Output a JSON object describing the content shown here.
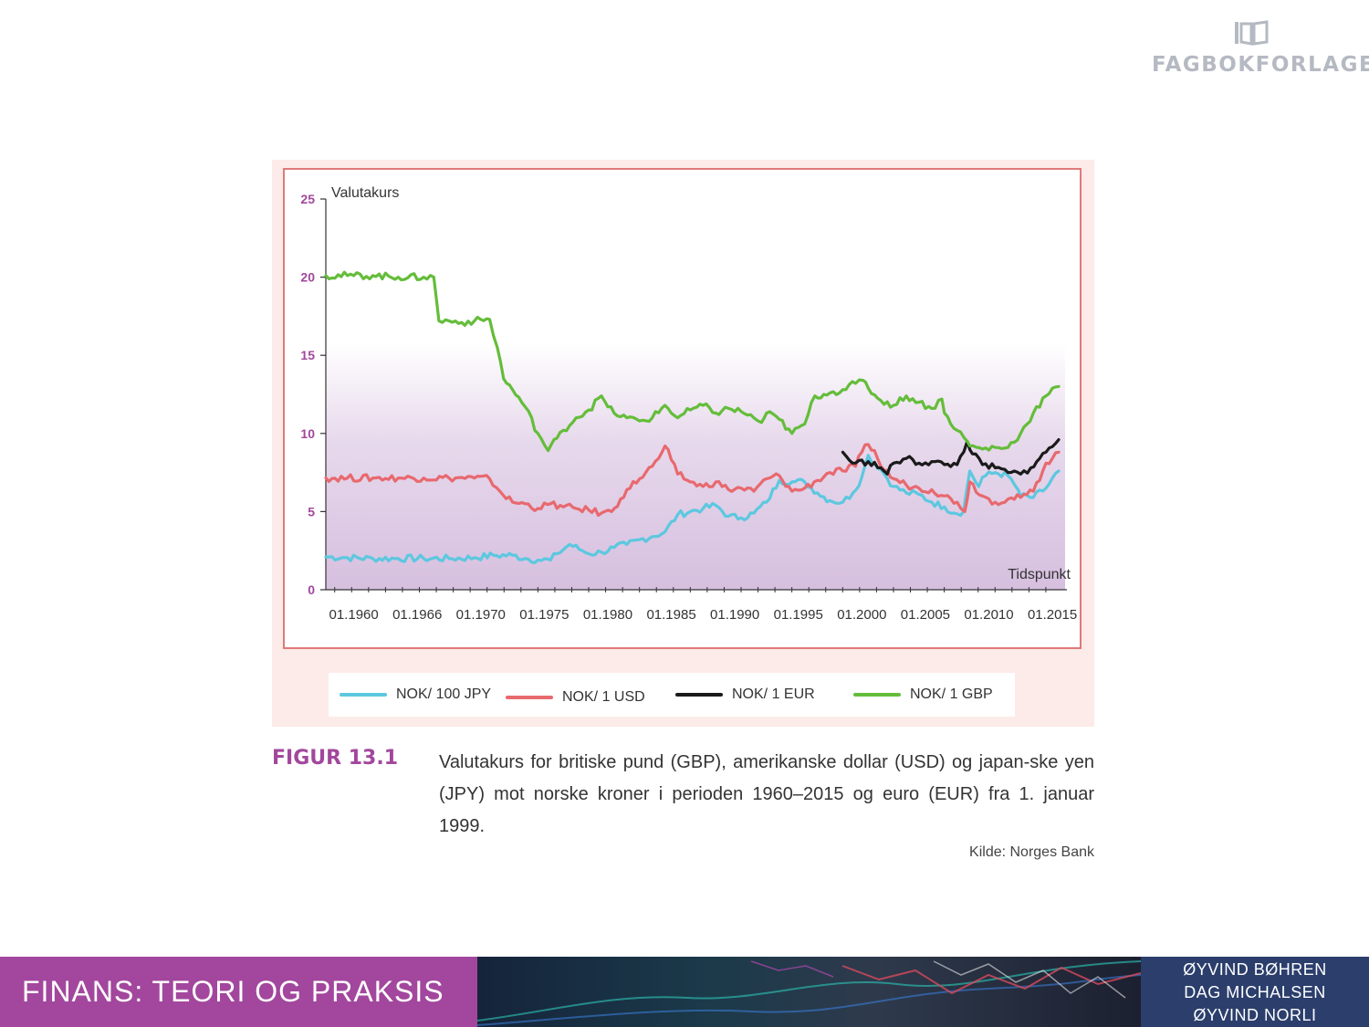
{
  "publisher": {
    "name": "FAGBOKFORLAGET",
    "icon": "open-book-logo-icon"
  },
  "chart_data": {
    "type": "line",
    "ylabel": "Valutakurs",
    "xlabel": "Tidspunkt",
    "ylim": [
      0,
      25
    ],
    "xlim": [
      1958.3,
      2016.5
    ],
    "yticks": [
      0,
      5,
      10,
      15,
      20,
      25
    ],
    "xtick_labels": [
      "01.1960",
      "01.1966",
      "01.1970",
      "01.1975",
      "01.1980",
      "01.1985",
      "01.1990",
      "01.1995",
      "01.2000",
      "01.2005",
      "01.2010",
      "01.2015"
    ],
    "xtick_positions": [
      1960.5,
      1965.5,
      1970.5,
      1975.5,
      1980.5,
      1985.5,
      1990.5,
      1995.5,
      2000.5,
      2005.5,
      2010.5,
      2015.5
    ],
    "grid": false,
    "legend_position": "bottom",
    "series": [
      {
        "name": "NOK/ 100 JPY",
        "color": "#5cc8df",
        "x": [
          1958.3,
          1960,
          1962,
          1964,
          1966,
          1968,
          1970,
          1971.5,
          1973,
          1974,
          1975,
          1976,
          1976.5,
          1977.5,
          1978.5,
          1979,
          1980,
          1981,
          1982,
          1983,
          1984,
          1985,
          1986,
          1987,
          1988,
          1989,
          1990,
          1991,
          1992,
          1993,
          1994,
          1995,
          1996,
          1997,
          1998,
          1999,
          1999.8,
          2000.5,
          2001,
          2002,
          2003,
          2004,
          2005,
          2006,
          2007,
          2007.8,
          2008.5,
          2009,
          2009.7,
          2010,
          2011,
          2012,
          2012.8,
          2013,
          2014,
          2015,
          2016
        ],
        "y": [
          2.1,
          2.05,
          2.0,
          2.0,
          2.0,
          2.0,
          2.05,
          2.2,
          2.2,
          2.0,
          1.9,
          1.9,
          2.3,
          2.9,
          2.5,
          2.3,
          2.4,
          2.7,
          2.9,
          3.2,
          3.4,
          3.7,
          4.8,
          5.0,
          5.2,
          5.4,
          4.7,
          4.6,
          4.9,
          5.6,
          7.0,
          6.9,
          6.9,
          6.2,
          5.7,
          5.6,
          6.2,
          7.2,
          8.6,
          7.7,
          6.6,
          6.2,
          6.1,
          5.6,
          5.3,
          4.9,
          5.0,
          7.6,
          6.6,
          7.2,
          7.5,
          7.3,
          6.4,
          6.0,
          5.9,
          6.5,
          7.6
        ]
      },
      {
        "name": "NOK/ 1 USD",
        "color": "#e8696e",
        "x": [
          1958.3,
          1960,
          1962,
          1964,
          1966,
          1968,
          1970,
          1971.2,
          1972,
          1973,
          1974,
          1975,
          1976,
          1977,
          1978,
          1979,
          1980,
          1980.8,
          1981.5,
          1982,
          1983,
          1984,
          1984.5,
          1985,
          1985.5,
          1986,
          1987,
          1988,
          1989,
          1990,
          1991,
          1992,
          1993,
          1994,
          1995,
          1996,
          1997,
          1998,
          1999,
          2000,
          2000.5,
          2001,
          2001.5,
          2002,
          2003,
          2004,
          2005,
          2006,
          2007,
          2008,
          2008.6,
          2009,
          2010,
          2011,
          2012,
          2013,
          2014,
          2015,
          2016
        ],
        "y": [
          7.15,
          7.15,
          7.15,
          7.15,
          7.15,
          7.15,
          7.15,
          7.1,
          6.3,
          5.6,
          5.5,
          5.2,
          5.5,
          5.3,
          5.2,
          5.1,
          4.9,
          5.0,
          5.8,
          6.4,
          7.1,
          7.9,
          8.4,
          9.2,
          8.3,
          7.4,
          6.9,
          6.6,
          6.9,
          6.4,
          6.5,
          6.3,
          7.1,
          7.3,
          6.3,
          6.5,
          7.0,
          7.5,
          7.6,
          7.9,
          8.8,
          9.3,
          8.9,
          7.9,
          7.1,
          6.7,
          6.5,
          6.4,
          6.0,
          5.6,
          5.0,
          6.9,
          6.0,
          5.6,
          5.8,
          5.9,
          6.3,
          8.1,
          8.8
        ]
      },
      {
        "name": "NOK/ 1 EUR",
        "color": "#1a1a1a",
        "x": [
          1999,
          1999.5,
          2000,
          2001,
          2002,
          2002.5,
          2003,
          2004,
          2005,
          2006,
          2007,
          2008,
          2008.8,
          2009.2,
          2010,
          2011,
          2012,
          2013,
          2013.8,
          2014.5,
          2015,
          2016
        ],
        "y": [
          8.8,
          8.3,
          8.1,
          8.2,
          7.8,
          7.4,
          8.1,
          8.4,
          8.1,
          8.2,
          8.0,
          8.0,
          9.5,
          8.7,
          8.0,
          7.8,
          7.5,
          7.4,
          7.8,
          8.4,
          8.8,
          9.6
        ]
      },
      {
        "name": "NOK/ 1 GBP",
        "color": "#64bd3a",
        "x": [
          1958.3,
          1960,
          1962,
          1964,
          1966,
          1966.8,
          1967.2,
          1968,
          1969,
          1970,
          1971.2,
          1971.8,
          1972.3,
          1973,
          1974,
          1975,
          1975.8,
          1976.5,
          1977,
          1978,
          1979,
          1980,
          1980.5,
          1981,
          1982,
          1983,
          1984,
          1985,
          1986,
          1987,
          1988,
          1989,
          1990,
          1991,
          1992,
          1992.6,
          1993,
          1994,
          1995,
          1996,
          1996.8,
          1997.5,
          1998,
          1999,
          2000,
          2000.6,
          2001,
          2002,
          2003,
          2004,
          2005,
          2006,
          2006.8,
          2007,
          2008,
          2008.8,
          2009,
          2010,
          2011,
          2012,
          2013,
          2014,
          2015,
          2016
        ],
        "y": [
          20.1,
          20.1,
          20.1,
          20.0,
          20.0,
          20.0,
          17.2,
          17.2,
          17.1,
          17.2,
          17.3,
          15.5,
          13.5,
          12.8,
          11.7,
          10.0,
          8.9,
          9.7,
          10.2,
          11.0,
          11.5,
          12.4,
          11.7,
          11.3,
          11.0,
          10.8,
          11.0,
          11.8,
          11.0,
          11.5,
          11.8,
          11.3,
          11.6,
          11.4,
          11.0,
          10.7,
          11.3,
          10.9,
          10.0,
          10.6,
          12.4,
          12.5,
          12.6,
          12.8,
          13.2,
          13.4,
          12.9,
          12.1,
          11.8,
          12.4,
          12.0,
          11.6,
          12.2,
          11.3,
          10.2,
          9.5,
          9.2,
          9.0,
          9.1,
          9.1,
          10.0,
          11.3,
          12.4,
          13.0
        ]
      }
    ]
  },
  "caption": {
    "label": "FIGUR 13.1",
    "text": "Valutakurs for britiske pund (GBP), amerikanske dollar (USD) og japan-ske yen (JPY) mot norske kroner i perioden 1960–2015 og euro (EUR) fra 1. januar 1999.",
    "source": "Kilde: Norges Bank"
  },
  "footer": {
    "title": "FINANS: TEORI OG PRAKSIS",
    "authors": [
      "ØYVIND BØHREN",
      "DAG MICHALSEN",
      "ØYVIND NORLI"
    ],
    "colors": {
      "left": "#a2479d",
      "right": "#2b3e6c"
    }
  }
}
